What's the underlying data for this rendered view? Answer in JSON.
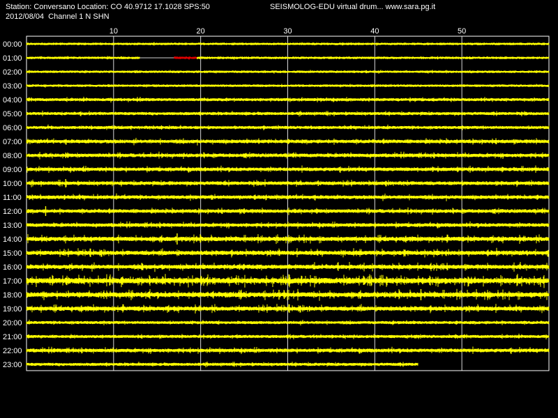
{
  "header": {
    "station_line": "Station: Conversano Location: CO 40.9712 17.1028 SPS:50",
    "software_line": "SEISMOLOG-EDU virtual drum... www.sara.pg.it",
    "date_line": "2012/08/04  Channel 1 N SHN"
  },
  "colors": {
    "background": "#000000",
    "trace": "#ffff00",
    "current_segment": "#dd0000",
    "gridline": "#ffffff",
    "text": "#ffffff"
  },
  "chart_data": {
    "type": "line",
    "description_type": "seismic helicorder drum",
    "x_ticks": [
      10,
      20,
      30,
      40,
      50
    ],
    "x_range": [
      0,
      60
    ],
    "grid_vertical": true,
    "rows": [
      {
        "label": "00:00",
        "activity": 1,
        "end_minute": 60
      },
      {
        "label": "01:00",
        "activity": 1,
        "end_minute": 60,
        "segments": [
          {
            "start": 0,
            "end": 13,
            "color": "yellow"
          },
          {
            "start": 13,
            "end": 17,
            "color": "dim"
          },
          {
            "start": 17,
            "end": 19.6,
            "color": "red"
          },
          {
            "start": 19.6,
            "end": 60,
            "color": "yellow"
          }
        ]
      },
      {
        "label": "02:00",
        "activity": 1,
        "end_minute": 60
      },
      {
        "label": "03:00",
        "activity": 1,
        "end_minute": 60
      },
      {
        "label": "04:00",
        "activity": 2,
        "end_minute": 60
      },
      {
        "label": "05:00",
        "activity": 2,
        "end_minute": 60
      },
      {
        "label": "06:00",
        "activity": 2,
        "end_minute": 60
      },
      {
        "label": "07:00",
        "activity": 3,
        "end_minute": 60
      },
      {
        "label": "08:00",
        "activity": 3,
        "end_minute": 60
      },
      {
        "label": "09:00",
        "activity": 3,
        "end_minute": 60
      },
      {
        "label": "10:00",
        "activity": 3,
        "end_minute": 60
      },
      {
        "label": "11:00",
        "activity": 3,
        "end_minute": 60
      },
      {
        "label": "12:00",
        "activity": 3,
        "end_minute": 60
      },
      {
        "label": "13:00",
        "activity": 3,
        "end_minute": 60
      },
      {
        "label": "14:00",
        "activity": 4,
        "end_minute": 60
      },
      {
        "label": "15:00",
        "activity": 4,
        "end_minute": 60
      },
      {
        "label": "16:00",
        "activity": 4,
        "end_minute": 60
      },
      {
        "label": "17:00",
        "activity": 6,
        "end_minute": 60
      },
      {
        "label": "18:00",
        "activity": 5,
        "end_minute": 60
      },
      {
        "label": "19:00",
        "activity": 4,
        "end_minute": 60
      },
      {
        "label": "20:00",
        "activity": 2,
        "end_minute": 60
      },
      {
        "label": "21:00",
        "activity": 2,
        "end_minute": 60
      },
      {
        "label": "22:00",
        "activity": 3,
        "end_minute": 60
      },
      {
        "label": "23:00",
        "activity": 2,
        "end_minute": 45
      }
    ],
    "events": [
      {
        "row": "04:00",
        "minute": 14.5,
        "amp": 2
      },
      {
        "row": "06:00",
        "minute": 15.5,
        "amp": 3
      },
      {
        "row": "08:00",
        "minute": 4.5,
        "amp": 4
      },
      {
        "row": "08:00",
        "minute": 36.5,
        "amp": 3
      },
      {
        "row": "09:00",
        "minute": 6.5,
        "amp": 3
      },
      {
        "row": "09:00",
        "minute": 20.5,
        "amp": 3
      },
      {
        "row": "10:00",
        "minute": 4.5,
        "amp": 6
      },
      {
        "row": "10:00",
        "minute": 33.5,
        "amp": 4
      },
      {
        "row": "12:00",
        "minute": 2.2,
        "amp": 7
      },
      {
        "row": "12:00",
        "minute": 25,
        "amp": 4
      },
      {
        "row": "14:00",
        "minute": 17.3,
        "amp": 8
      },
      {
        "row": "14:00",
        "minute": 23.3,
        "amp": 3
      },
      {
        "row": "15:00",
        "minute": 17.5,
        "amp": 4
      },
      {
        "row": "15:00",
        "minute": 47.3,
        "amp": 3
      },
      {
        "row": "17:00",
        "minute": 45.5,
        "amp": 5
      },
      {
        "row": "17:00",
        "minute": 12,
        "amp": 3
      },
      {
        "row": "18:00",
        "minute": 29,
        "amp": 7
      },
      {
        "row": "18:00",
        "minute": 29.6,
        "amp": 6
      },
      {
        "row": "18:00",
        "minute": 45.3,
        "amp": 8
      },
      {
        "row": "19:00",
        "minute": 16.3,
        "amp": 4
      },
      {
        "row": "19:00",
        "minute": 32.5,
        "amp": 4
      },
      {
        "row": "22:00",
        "minute": 3.2,
        "amp": 3
      }
    ]
  }
}
